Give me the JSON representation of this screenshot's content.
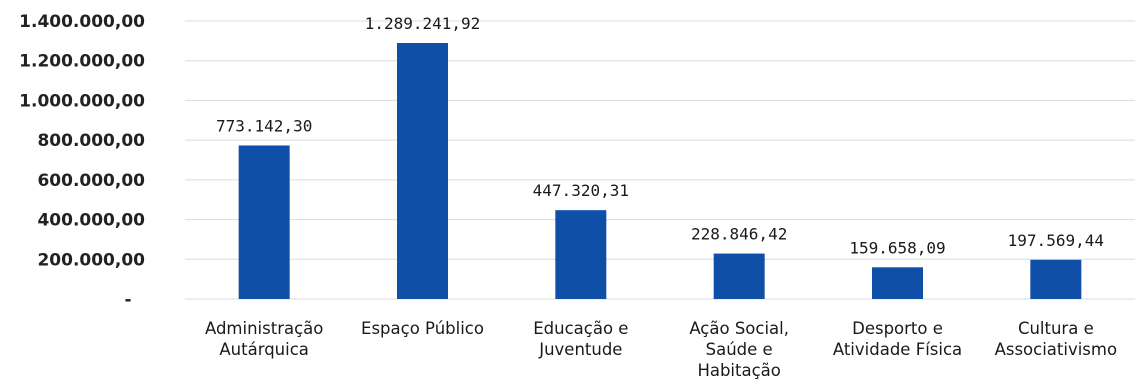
{
  "chart_data": {
    "type": "bar",
    "title": "",
    "xlabel": "",
    "ylabel": "",
    "ylim": [
      0,
      1400000
    ],
    "y_ticks": [
      0,
      200000,
      400000,
      600000,
      800000,
      1000000,
      1200000,
      1400000
    ],
    "y_tick_labels": [
      "-",
      "200.000,00",
      "400.000,00",
      "600.000,00",
      "800.000,00",
      "1.000.000,00",
      "1.200.000,00",
      "1.400.000,00"
    ],
    "grid": true,
    "categories": [
      [
        "Administração",
        "Autárquica"
      ],
      [
        "Espaço Público"
      ],
      [
        "Educação e",
        "Juventude"
      ],
      [
        "Ação Social,",
        "Saúde e",
        "Habitação"
      ],
      [
        "Desporto e",
        "Atividade Física"
      ],
      [
        "Cultura e",
        "Associativismo"
      ]
    ],
    "values": [
      773142.3,
      1289241.92,
      447320.31,
      228846.42,
      159658.09,
      197569.44
    ],
    "value_labels": [
      "773.142,30",
      "1.289.241,92",
      "447.320,31",
      "228.846,42",
      "159.658,09",
      "197.569,44"
    ],
    "bar_color": "#0f4fa8"
  }
}
